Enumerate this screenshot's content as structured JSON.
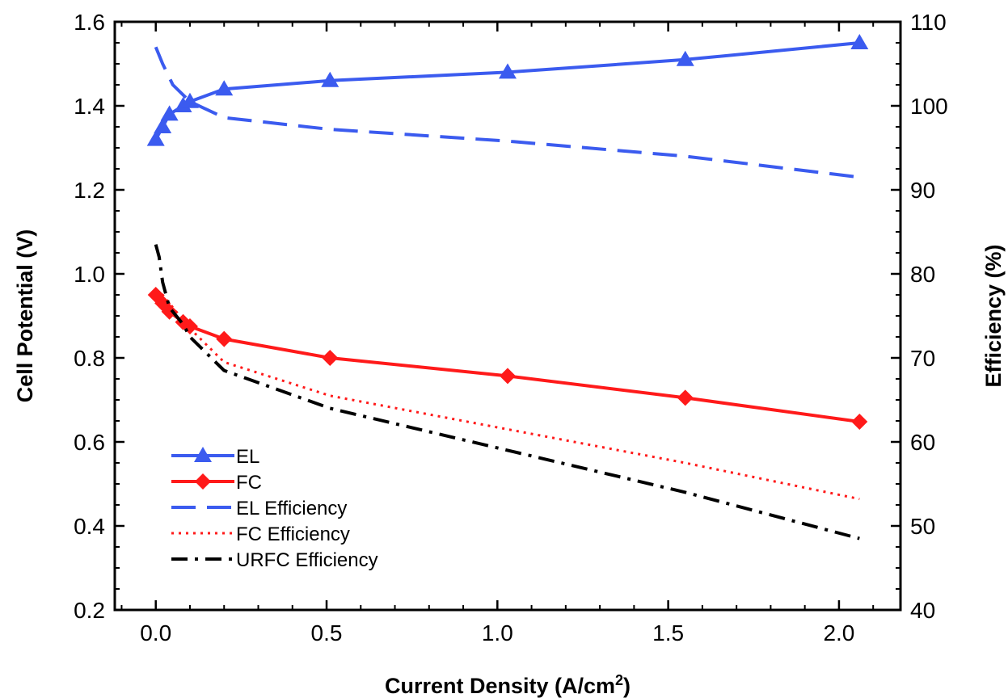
{
  "chart_data": {
    "type": "line",
    "xlabel": "Current Density (A/cm",
    "xlabel_sup": "2",
    "xlabel_suffix": ")",
    "ylabel": "Cell Potential (V)",
    "y2label": "Efficiency (%)",
    "xlim": [
      -0.12,
      2.18
    ],
    "ylim": [
      0.2,
      1.6
    ],
    "y2lim": [
      40,
      110
    ],
    "x_ticks": [
      "0.0",
      "0.5",
      "1.0",
      "1.5",
      "2.0"
    ],
    "y_ticks": [
      "0.2",
      "0.4",
      "0.6",
      "0.8",
      "1.0",
      "1.2",
      "1.4",
      "1.6"
    ],
    "y2_ticks": [
      "40",
      "50",
      "60",
      "70",
      "80",
      "90",
      "100",
      "110"
    ],
    "grid": false,
    "legend_position": "lower-left",
    "series": [
      {
        "name": "EL",
        "axis": "left",
        "style": "solid",
        "marker": "triangle",
        "color": "#3b5bef",
        "x": [
          0.0,
          0.02,
          0.04,
          0.08,
          0.1,
          0.2,
          0.51,
          1.03,
          1.55,
          2.06
        ],
        "y": [
          1.32,
          1.35,
          1.38,
          1.4,
          1.41,
          1.44,
          1.46,
          1.48,
          1.51,
          1.55
        ]
      },
      {
        "name": "FC",
        "axis": "left",
        "style": "solid",
        "marker": "diamond",
        "color": "#ff1a1a",
        "x": [
          0.0,
          0.02,
          0.04,
          0.08,
          0.1,
          0.2,
          0.51,
          1.03,
          1.55,
          2.06
        ],
        "y": [
          0.95,
          0.93,
          0.91,
          0.885,
          0.875,
          0.845,
          0.8,
          0.757,
          0.705,
          0.648
        ]
      },
      {
        "name": "EL Efficiency",
        "axis": "right",
        "style": "dashed",
        "marker": "none",
        "color": "#3b5bef",
        "x": [
          0.0,
          0.02,
          0.05,
          0.1,
          0.2,
          0.51,
          1.03,
          1.55,
          2.06
        ],
        "y": [
          107,
          105,
          102.5,
          100.5,
          98.6,
          97.2,
          95.8,
          94.0,
          91.5
        ]
      },
      {
        "name": "FC Efficiency",
        "axis": "right",
        "style": "dotted",
        "marker": "none",
        "color": "#ff1a1a",
        "x": [
          0.0,
          0.02,
          0.05,
          0.1,
          0.2,
          0.51,
          1.03,
          1.55,
          2.06
        ],
        "y": [
          78,
          77.5,
          76,
          73.5,
          69.5,
          65.5,
          61.5,
          57.5,
          53.2
        ]
      },
      {
        "name": "URFC Efficiency",
        "axis": "right",
        "style": "dash-dot",
        "marker": "none",
        "color": "#000000",
        "x": [
          0.0,
          0.01,
          0.02,
          0.04,
          0.08,
          0.1,
          0.2,
          0.51,
          1.03,
          1.55,
          2.06
        ],
        "y": [
          83.5,
          82,
          79,
          76,
          74,
          72.5,
          68.5,
          64.0,
          59.0,
          54.0,
          48.5
        ]
      }
    ]
  }
}
